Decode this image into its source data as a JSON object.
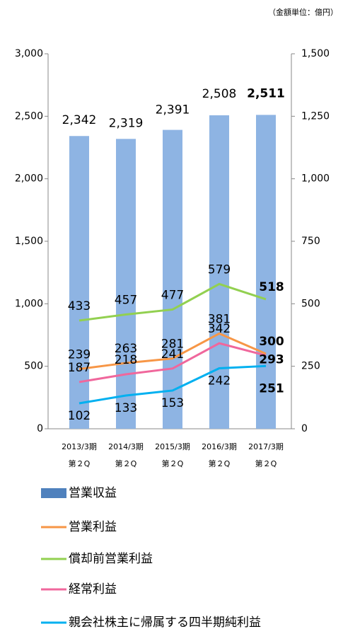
{
  "chart_data": {
    "type": "bar-line",
    "unit_note": "（金額単位：億円）",
    "categories": [
      [
        "2013/3期",
        "第２Q"
      ],
      [
        "2014/3期",
        "第２Q"
      ],
      [
        "2015/3期",
        "第２Q"
      ],
      [
        "2016/3期",
        "第２Q"
      ],
      [
        "2017/3期",
        "第２Q"
      ]
    ],
    "ylim": [
      0,
      3000
    ],
    "yticks": [
      0,
      500,
      {
        "value": 1000,
        "label": "1,000"
      },
      {
        "value": 1500,
        "label": "1,500"
      },
      {
        "value": 2000,
        "label": "2,000"
      },
      {
        "value": 2500,
        "label": "2,500"
      },
      {
        "value": 3000,
        "label": "3,000"
      }
    ],
    "y2lim": [
      0,
      1500
    ],
    "y2ticks": [
      0,
      250,
      500,
      750,
      {
        "value": 1000,
        "label": "1,000"
      },
      {
        "value": 1250,
        "label": "1,250"
      },
      {
        "value": 1500,
        "label": "1,500"
      }
    ],
    "bold_last_labels": true,
    "series": [
      {
        "name": "営業収益",
        "kind": "bar",
        "color": "#8eb4e3",
        "values": [
          2342,
          2319,
          2391,
          2508,
          2511
        ],
        "value_labels": [
          "2,342",
          "2,319",
          "2,391",
          "2,508",
          "2,511"
        ]
      },
      {
        "name": "営業利益",
        "kind": "line",
        "axis": "y2",
        "color": "#f79646",
        "values": [
          239,
          263,
          281,
          381,
          300
        ]
      },
      {
        "name": "償却前営業利益",
        "kind": "line",
        "axis": "y2",
        "color": "#92d050",
        "values": [
          433,
          457,
          477,
          579,
          518
        ]
      },
      {
        "name": "経常利益",
        "kind": "line",
        "axis": "y2",
        "color": "#f0679c",
        "values": [
          187,
          218,
          241,
          342,
          293
        ]
      },
      {
        "name": "親会社株主に帰属する四半期純利益",
        "kind": "line",
        "axis": "y2",
        "color": "#00b0f0",
        "values": [
          102,
          133,
          153,
          242,
          251
        ]
      }
    ]
  }
}
